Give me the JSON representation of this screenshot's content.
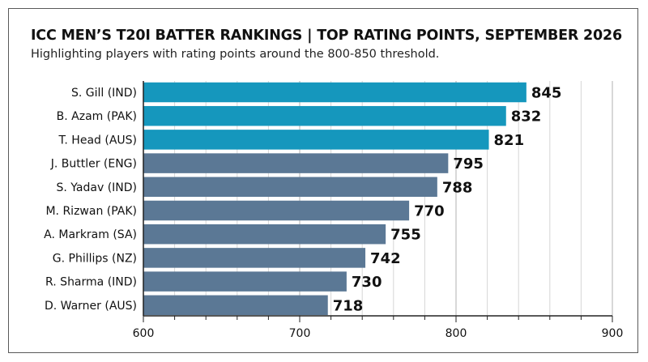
{
  "title": "ICC MEN’S T20I BATTER RANKINGS | TOP RATING POINTS, SEPTEMBER 2026",
  "subtitle": "Highlighting players with rating points around the 800-850 threshold.",
  "colors": {
    "highlight": "#1597bd",
    "regular": "#5b7895",
    "grid": "#d6d6d6",
    "axis": "#222222"
  },
  "chart_data": {
    "type": "bar",
    "orientation": "horizontal",
    "categories": [
      "S. Gill (IND)",
      "B. Azam (PAK)",
      "T. Head (AUS)",
      "J. Buttler (ENG)",
      "S. Yadav (IND)",
      "M. Rizwan (PAK)",
      "A. Markram (SA)",
      "G. Phillips (NZ)",
      "R. Sharma (IND)",
      "D. Warner (AUS)"
    ],
    "values": [
      845,
      832,
      821,
      795,
      788,
      770,
      755,
      742,
      730,
      718
    ],
    "highlighted": [
      true,
      true,
      true,
      false,
      false,
      false,
      false,
      false,
      false,
      false
    ],
    "title": "ICC MEN’S T20I BATTER RANKINGS | TOP RATING POINTS, SEPTEMBER 2026",
    "xlabel": "",
    "ylabel": "",
    "xlim": [
      600,
      900
    ],
    "xticks": [
      600,
      700,
      800,
      900
    ],
    "grid": true
  }
}
